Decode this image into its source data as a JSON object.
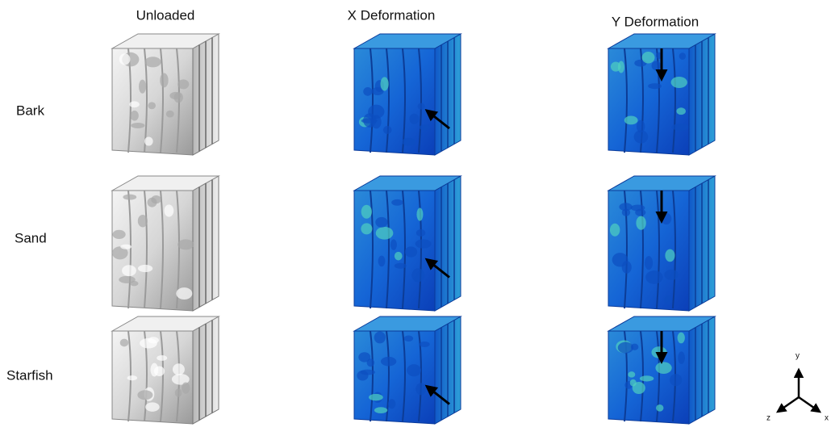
{
  "column_headers": [
    "Unloaded",
    "X Deformation",
    "Y Deformation"
  ],
  "row_labels": [
    "Bark",
    "Sand",
    "Starfish"
  ],
  "axis_labels": {
    "y": "y",
    "z": "z",
    "x": "x"
  }
}
